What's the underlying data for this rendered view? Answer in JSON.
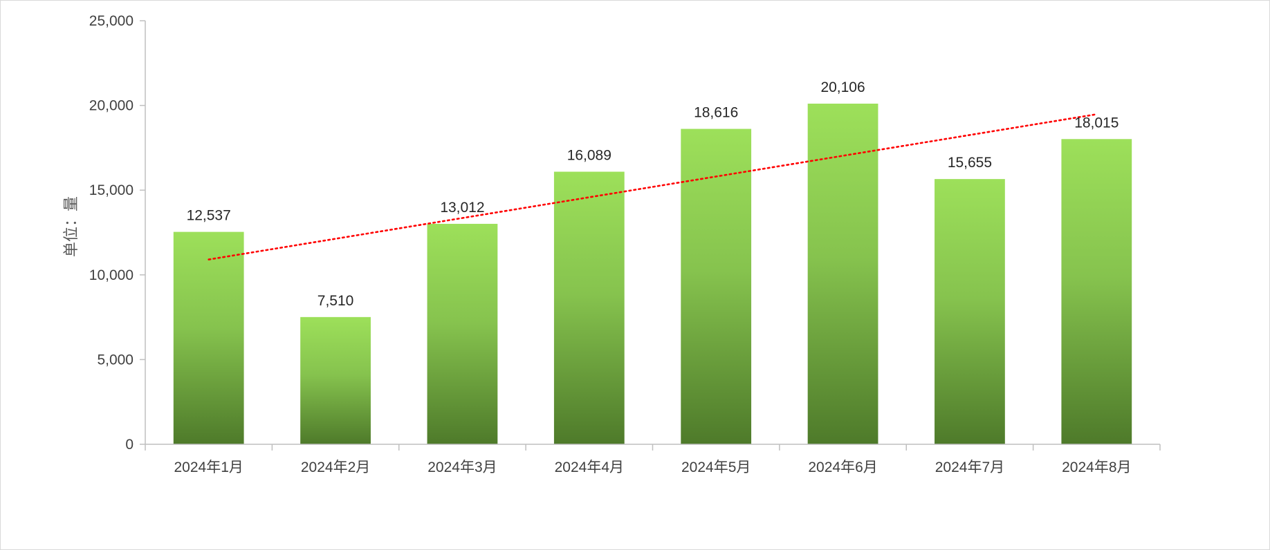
{
  "chart_data": {
    "type": "bar",
    "categories": [
      "2024年1月",
      "2024年2月",
      "2024年3月",
      "2024年4月",
      "2024年5月",
      "2024年6月",
      "2024年7月",
      "2024年8月"
    ],
    "values": [
      12537,
      7510,
      13012,
      16089,
      18616,
      20106,
      15655,
      18015
    ],
    "value_labels": [
      "12,537",
      "7,510",
      "13,012",
      "16,089",
      "18,616",
      "20,106",
      "15,655",
      "18,015"
    ],
    "title": "",
    "xlabel": "",
    "ylabel": "单位：量",
    "ylim": [
      0,
      25000
    ],
    "yticks": [
      0,
      5000,
      10000,
      15000,
      20000,
      25000
    ],
    "ytick_labels": [
      "0",
      "5,000",
      "10,000",
      "15,000",
      "20,000",
      "25,000"
    ],
    "grid": false,
    "legend": "none",
    "trendline": {
      "type": "linear",
      "style": "dotted",
      "color": "#ff0000"
    },
    "colors": {
      "bar_top": "#9de05a",
      "bar_bottom": "#4e7a2a",
      "axis": "#bfbfbf"
    }
  }
}
